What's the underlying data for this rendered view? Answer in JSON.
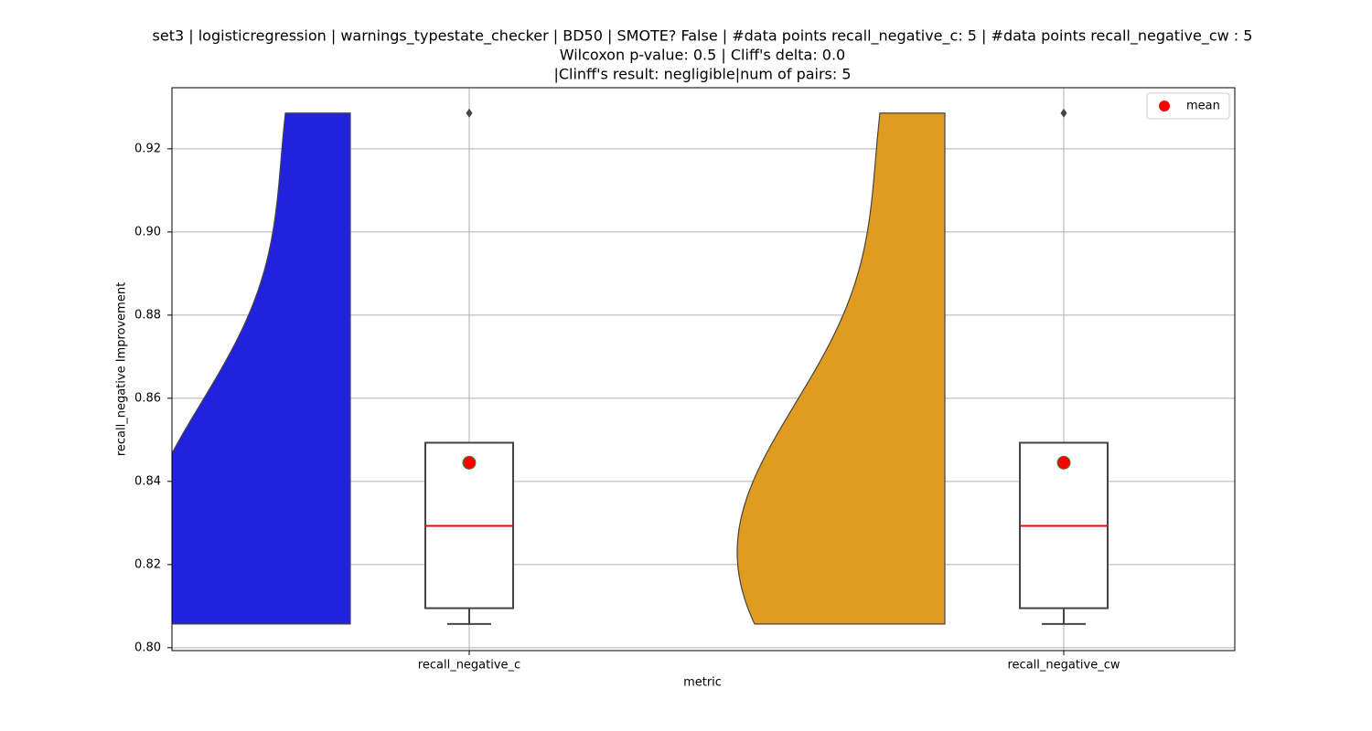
{
  "chart_data": {
    "type": "violin_box",
    "title": [
      "set3 | logisticregression | warnings_typestate_checker | BD50 | SMOTE? False | #data points recall_negative_c: 5 | #data points recall_negative_cw : 5",
      "Wilcoxon p-value: 0.5 | Cliff's delta: 0.0",
      "|Clinff's result: negligible|num of pairs: 5"
    ],
    "x_label": "metric",
    "y_label": "recall_negative Improvement",
    "categories": [
      "recall_negative_c",
      "recall_negative_cw"
    ],
    "colors": [
      "#2121e0",
      "#e09c21"
    ],
    "distributions": [
      [
        0.8057,
        0.8095,
        0.8293,
        0.8493,
        0.9286
      ],
      [
        0.8057,
        0.8095,
        0.8293,
        0.8493,
        0.9286
      ]
    ],
    "boxes": [
      {
        "whislo": 0.8057,
        "q1": 0.8095,
        "med": 0.8293,
        "q3": 0.8493,
        "whishi": 0.8493,
        "fliers": [
          0.9286
        ]
      },
      {
        "whislo": 0.8057,
        "q1": 0.8095,
        "med": 0.8293,
        "q3": 0.8493,
        "whishi": 0.8493,
        "fliers": [
          0.9286
        ]
      }
    ],
    "means": [
      0.8445,
      0.8445
    ],
    "median_color": "#ff0000",
    "mean_color": "#ff0000",
    "ylim": [
      0.7993,
      0.9347
    ],
    "yticks": [
      {
        "value": 0.8,
        "label": "0.80"
      },
      0.82,
      0.84,
      0.86,
      0.88,
      {
        "value": 0.9,
        "label": "0.90"
      },
      0.92
    ],
    "grid": true,
    "legend": {
      "label": "mean",
      "loc": "upper right"
    }
  }
}
